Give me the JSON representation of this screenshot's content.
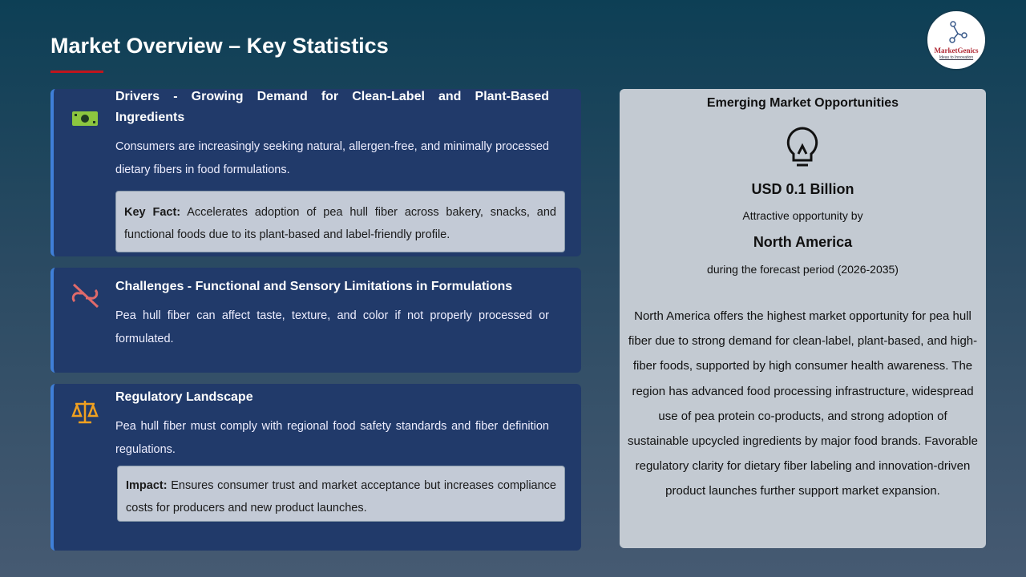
{
  "title": "Market Overview – Key Statistics",
  "logo": {
    "name": "MarketGenics",
    "tagline": "Ideas to Innovation"
  },
  "cards": [
    {
      "icon": "money-icon",
      "title": "Drivers - Growing Demand for Clean-Label and Plant-Based Ingredients",
      "text": "Consumers are increasingly seeking natural, allergen-free, and minimally processed dietary fibers in food formulations.",
      "box_label": "Key Fact:",
      "box_text": " Accelerates adoption of pea hull fiber across bakery, snacks, and functional foods due to its plant-based and label-friendly profile."
    },
    {
      "icon": "broken-link-icon",
      "title": "Challenges - Functional and Sensory Limitations in Formulations",
      "text": "Pea hull fiber can affect taste, texture, and color if not properly processed or formulated."
    },
    {
      "icon": "scales-icon",
      "title": "Regulatory Landscape",
      "text": "Pea hull fiber must comply with regional food safety standards and fiber definition regulations.",
      "box_label": "Impact:",
      "box_text": " Ensures consumer trust and market acceptance but increases compliance costs for producers and new product launches."
    }
  ],
  "opportunity": {
    "heading": "Emerging Market Opportunities",
    "value": "USD 0.1 Billion",
    "by": "Attractive opportunity by",
    "region": "North America",
    "period": "during the forecast period (2026-2035)",
    "description": "North America offers the highest market opportunity for pea hull fiber due to strong demand for clean-label, plant-based, and high-fiber foods, supported by high consumer health awareness. The region has advanced food processing infrastructure, widespread use of pea protein co-products, and strong adoption of sustainable upcycled ingredients by major food brands. Favorable regulatory clarity for dietary fiber labeling and innovation-driven product launches further support market expansion."
  }
}
